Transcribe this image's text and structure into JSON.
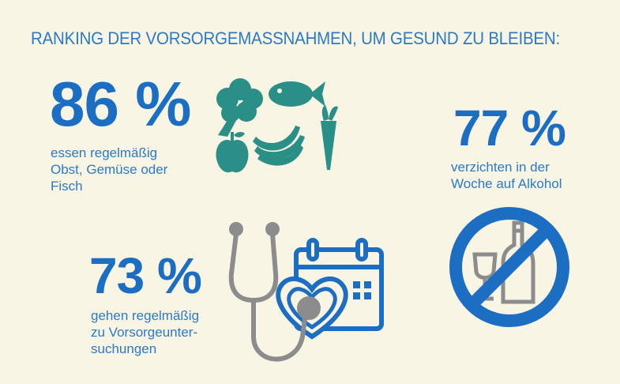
{
  "title": "RANKING DER VORSORGEMASSNAHMEN, UM GESUND ZU BLEIBEN:",
  "stats": [
    {
      "value": "86 %",
      "lines": [
        "essen regelmäßig",
        "Obst, Gemüse oder",
        "Fisch"
      ],
      "icon": "fruit-vegetables-fish-icon"
    },
    {
      "value": "77 %",
      "lines": [
        "verzichten in der",
        "Woche auf Alkohol"
      ],
      "icon": "no-alcohol-icon"
    },
    {
      "value": "73 %",
      "lines": [
        "gehen regelmäßig",
        "zu Vorsorgeunter-",
        "suchungen"
      ],
      "icon": "stethoscope-calendar-icon"
    }
  ],
  "colors": {
    "background": "#f8f5e4",
    "primary_blue": "#1b6ec2",
    "teal": "#2a8f86",
    "gray": "#8c8c8c"
  }
}
